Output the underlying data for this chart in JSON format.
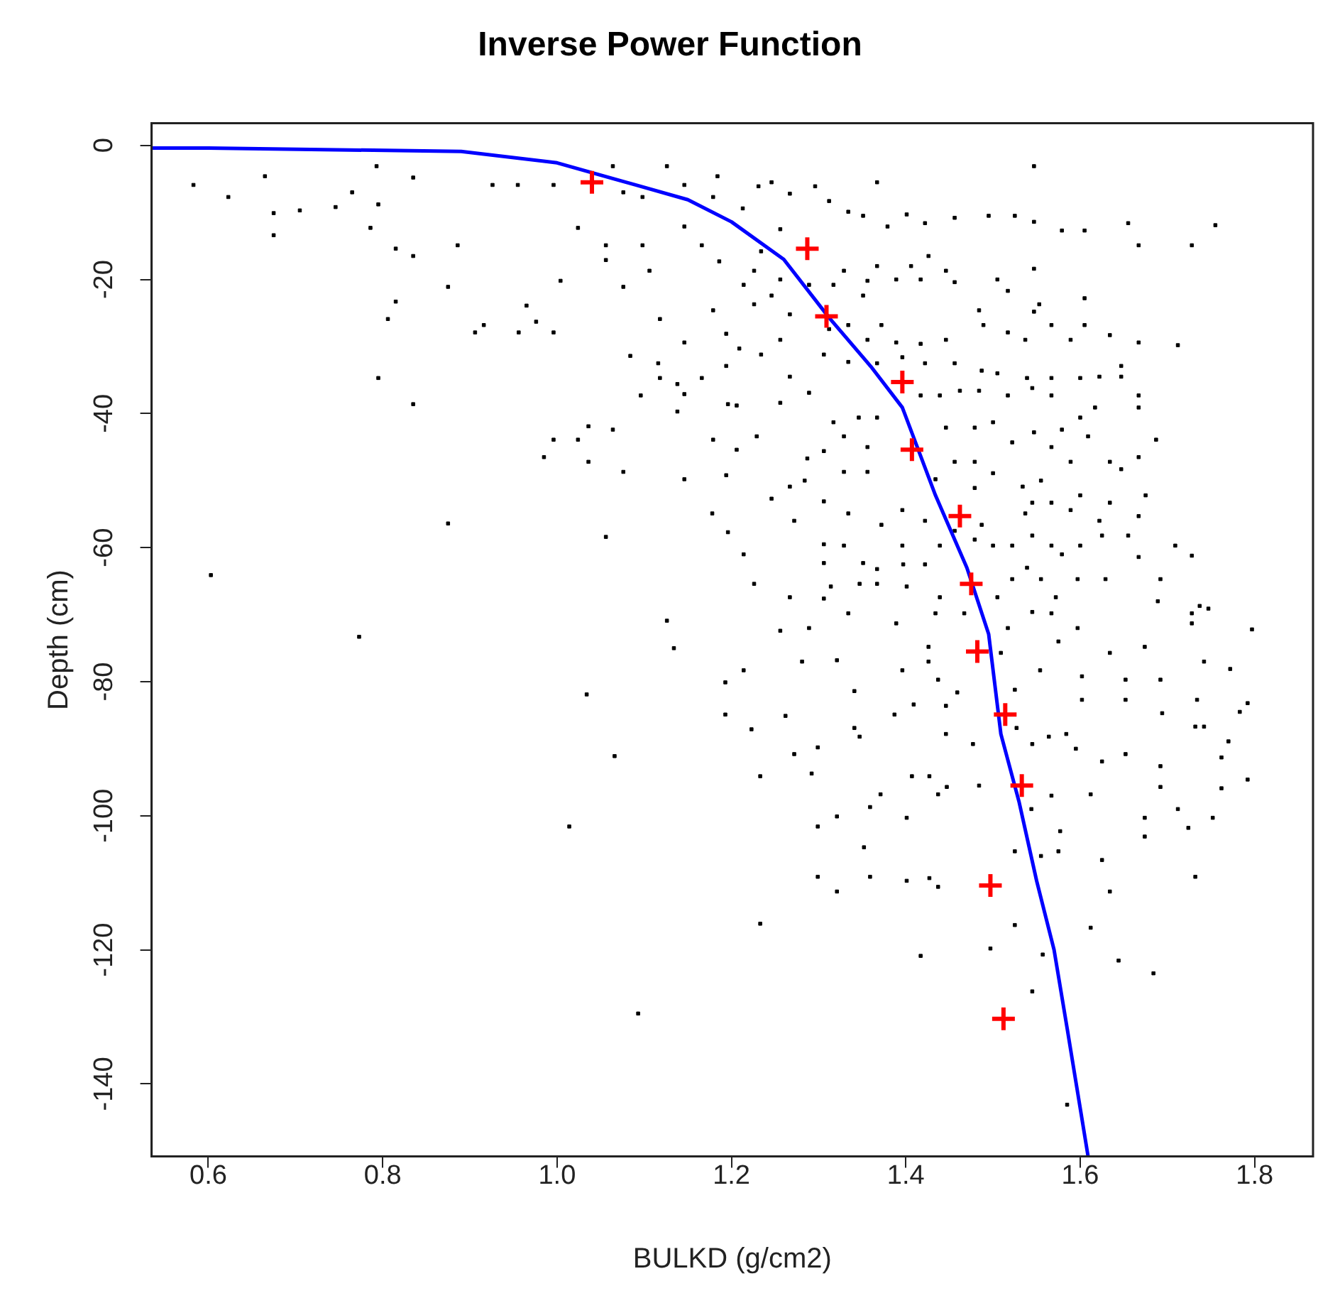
{
  "chart_data": {
    "type": "scatter",
    "title": "Inverse Power Function",
    "xlabel": "BULKD (g/cm2)",
    "ylabel": "Depth (cm)",
    "xlim": [
      0.535,
      1.867
    ],
    "ylim": [
      -150.8,
      3.3
    ],
    "xticks": [
      0.6,
      0.8,
      {
        "value": 1,
        "label": "1.0"
      },
      1.2,
      1.4,
      1.6,
      1.8
    ],
    "yticks": [
      0,
      -20,
      -40,
      -60,
      -80,
      -100,
      -120,
      -140
    ],
    "grid": false,
    "legend": false,
    "series": [
      {
        "color": "#000000",
        "marker": "square",
        "x": [
          0.583,
          0.623,
          0.665,
          0.675,
          0.675,
          0.705,
          0.746,
          0.765,
          0.793,
          0.795,
          0.786,
          0.835,
          0.815,
          0.835,
          0.815,
          0.806,
          0.795,
          0.835,
          0.875,
          0.875,
          0.603,
          0.773,
          0.886,
          0.916,
          0.906,
          0.956,
          0.965,
          0.976,
          0.996,
          1.004,
          0.996,
          0.985,
          1.024,
          1.036,
          1.076,
          1.036,
          1.064,
          1.056,
          1.126,
          0.926,
          0.955,
          0.996,
          1.024,
          1.056,
          1.056,
          1.076,
          1.106,
          1.098,
          1.118,
          1.146,
          1.084,
          1.116,
          1.118,
          1.138,
          1.146,
          1.138,
          1.096,
          1.166,
          1.146,
          1.178,
          1.179,
          1.126,
          1.146,
          1.184,
          1.146,
          1.179,
          1.166,
          1.186,
          1.179,
          1.194,
          1.194,
          1.196,
          1.194,
          1.196,
          1.064,
          1.076,
          1.098,
          1.367,
          1.547,
          1.755,
          1.655,
          1.728,
          1.667,
          1.605,
          1.579,
          1.547,
          1.525,
          1.495,
          1.456,
          1.422,
          1.401,
          1.379,
          1.351,
          1.334,
          1.312,
          1.296,
          1.267,
          1.246,
          1.231,
          1.213,
          1.256,
          1.234,
          1.226,
          1.256,
          1.214,
          1.226,
          1.246,
          1.267,
          1.289,
          1.317,
          1.351,
          1.356,
          1.389,
          1.417,
          1.446,
          1.456,
          1.505,
          1.517,
          1.426,
          1.406,
          1.329,
          1.367,
          1.547,
          1.605,
          1.553,
          1.547,
          1.484,
          1.489,
          1.567,
          1.605,
          1.517,
          1.537,
          1.589,
          1.634,
          1.667,
          1.712,
          1.446,
          1.417,
          1.389,
          1.372,
          1.356,
          1.334,
          1.312,
          1.256,
          1.234,
          1.209,
          1.267,
          1.306,
          1.334,
          1.367,
          1.396,
          1.422,
          1.456,
          1.487,
          1.505,
          1.539,
          1.567,
          1.6,
          1.622,
          1.647,
          1.647,
          1.667,
          1.667,
          1.617,
          1.6,
          1.567,
          1.545,
          1.517,
          1.484,
          1.462,
          1.439,
          1.417,
          1.367,
          1.346,
          1.317,
          1.289,
          1.256,
          1.206,
          1.229,
          1.206,
          1.287,
          1.306,
          1.329,
          1.356,
          1.356,
          1.329,
          1.284,
          1.246,
          1.267,
          1.446,
          1.479,
          1.5,
          1.522,
          1.547,
          1.579,
          1.609,
          1.567,
          1.589,
          1.634,
          1.647,
          1.667,
          1.687,
          1.675,
          1.479,
          1.456,
          1.434,
          1.479,
          1.5,
          1.534,
          1.555,
          1.545,
          1.567,
          1.6,
          1.634,
          1.667,
          1.622,
          1.589,
          1.537,
          1.487,
          1.456,
          1.422,
          1.396,
          1.372,
          1.334,
          1.306,
          1.272,
          1.214,
          1.306,
          1.329,
          1.351,
          1.306,
          1.367,
          1.396,
          1.397,
          1.422,
          1.439,
          1.479,
          1.5,
          1.522,
          1.545,
          1.567,
          1.579,
          1.6,
          1.625,
          1.655,
          1.667,
          1.709,
          1.728,
          1.226,
          1.267,
          1.314,
          1.347,
          1.367,
          1.401,
          1.439,
          1.505,
          1.522,
          1.539,
          1.555,
          1.572,
          1.597,
          1.629,
          1.692,
          1.689,
          1.728,
          1.737,
          1.747,
          1.728,
          1.797,
          1.306,
          1.334,
          1.389,
          1.434,
          1.467,
          1.517,
          1.545,
          1.567,
          1.597,
          1.256,
          1.289,
          1.134,
          1.034,
          1.066,
          1.014,
          1.093,
          1.193,
          1.214,
          1.193,
          1.223,
          1.233,
          1.233,
          1.262,
          1.272,
          1.281,
          1.292,
          1.299,
          1.299,
          1.299,
          1.321,
          1.321,
          1.321,
          1.341,
          1.341,
          1.347,
          1.359,
          1.371,
          1.352,
          1.359,
          1.401,
          1.401,
          1.407,
          1.417,
          1.387,
          1.409,
          1.396,
          1.426,
          1.426,
          1.437,
          1.446,
          1.446,
          1.427,
          1.437,
          1.447,
          1.427,
          1.437,
          1.477,
          1.484,
          1.459,
          1.509,
          1.525,
          1.527,
          1.497,
          1.525,
          1.525,
          1.545,
          1.557,
          1.555,
          1.544,
          1.545,
          1.567,
          1.564,
          1.554,
          1.575,
          1.602,
          1.602,
          1.584,
          1.595,
          1.577,
          1.575,
          1.612,
          1.625,
          1.634,
          1.612,
          1.644,
          1.585,
          1.625,
          1.652,
          1.674,
          1.674,
          1.684,
          1.692,
          1.692,
          1.712,
          1.724,
          1.732,
          1.752,
          1.762,
          1.762,
          1.77,
          1.792,
          1.732,
          1.742,
          1.783,
          1.792,
          1.772,
          1.742,
          1.694,
          1.652,
          1.692,
          1.734,
          1.652,
          1.634,
          1.674
        ],
        "values": [
          -5.9,
          -7.7,
          -4.6,
          -10.1,
          -13.4,
          -9.7,
          -9.2,
          -7,
          -3.1,
          -8.8,
          -12.3,
          -4.8,
          -15.4,
          -16.5,
          -23.3,
          -25.9,
          -34.7,
          -38.6,
          -21.1,
          -56.4,
          -64.1,
          -73.3,
          -14.9,
          -26.8,
          -27.9,
          -27.9,
          -23.9,
          -26.3,
          -27.9,
          -20.2,
          -43.9,
          -46.5,
          -43.9,
          -47.2,
          -48.7,
          -41.9,
          -42.4,
          -58.4,
          -70.9,
          -5.9,
          -5.9,
          -5.9,
          -12.3,
          -14.9,
          -17.1,
          -21.1,
          -18.7,
          -14.9,
          -25.9,
          -29.4,
          -31.4,
          -32.5,
          -34.7,
          -35.6,
          -37.1,
          -39.7,
          -37.3,
          -34.7,
          -49.8,
          -54.9,
          -43.9,
          -3.1,
          -5.9,
          -4.6,
          -12.1,
          -7.7,
          -14.9,
          -17.3,
          -24.6,
          -28.1,
          -32.9,
          -38.6,
          -49.2,
          -57.7,
          -3.1,
          -7,
          -7.7,
          -5.5,
          -3.1,
          -11.9,
          -11.6,
          -14.9,
          -14.9,
          -12.7,
          -12.7,
          -11.4,
          -10.5,
          -10.5,
          -10.8,
          -11.6,
          -10.3,
          -12.1,
          -10.5,
          -9.9,
          -8.3,
          -6.1,
          -7.2,
          -5.5,
          -6.1,
          -9.4,
          -12.5,
          -15.8,
          -18.7,
          -20,
          -20.8,
          -23.7,
          -22.4,
          -25.2,
          -20.8,
          -20.8,
          -22.4,
          -20.2,
          -20,
          -20,
          -18.7,
          -20.4,
          -20,
          -21.7,
          -16.5,
          -18,
          -18.7,
          -18,
          -18.4,
          -22.8,
          -23.7,
          -24.8,
          -24.6,
          -26.8,
          -26.8,
          -26.8,
          -27.9,
          -29,
          -29,
          -28.3,
          -29.4,
          -29.8,
          -29,
          -29.6,
          -29.4,
          -26.8,
          -29,
          -26.8,
          -27.4,
          -29,
          -31.2,
          -30.3,
          -34.5,
          -31.2,
          -32.3,
          -32.5,
          -31.6,
          -32.5,
          -32.5,
          -33.6,
          -34,
          -34.7,
          -34.7,
          -34.7,
          -34.5,
          -32.9,
          -34.5,
          -37.3,
          -39.1,
          -39.1,
          -40.6,
          -37.3,
          -36.2,
          -37.3,
          -36.6,
          -36.6,
          -37.3,
          -37.3,
          -40.6,
          -40.6,
          -41.3,
          -36.9,
          -38.4,
          -38.8,
          -43.4,
          -45.4,
          -46.7,
          -45.6,
          -43.4,
          -45,
          -48.7,
          -48.7,
          -50,
          -52.7,
          -50.9,
          -42.1,
          -42.1,
          -41.3,
          -44.3,
          -42.8,
          -42.4,
          -43.4,
          -45,
          -47.2,
          -47.2,
          -48.3,
          -46.5,
          -43.9,
          -52.2,
          -47.2,
          -47.2,
          -49.8,
          -51.1,
          -48.9,
          -50.9,
          -50,
          -53.3,
          -53.3,
          -52.2,
          -53.3,
          -55.3,
          -56,
          -54.4,
          -54.9,
          -56.6,
          -57.5,
          -56,
          -54.4,
          -56.6,
          -54.9,
          -53.1,
          -56,
          -61,
          -59.5,
          -59.7,
          -62.3,
          -62.3,
          -63.2,
          -59.7,
          -62.5,
          -62.5,
          -59.7,
          -58.8,
          -59.7,
          -59.7,
          -58.2,
          -59.7,
          -61,
          -59.7,
          -58.2,
          -58.2,
          -61.4,
          -59.7,
          -61.2,
          -65.4,
          -67.4,
          -65.8,
          -65.4,
          -65.4,
          -65.8,
          -67.4,
          -67.4,
          -64.7,
          -63,
          -64.7,
          -67.4,
          -64.7,
          -64.7,
          -64.7,
          -68,
          -69.8,
          -68.7,
          -69.1,
          -71.3,
          -72.2,
          -67.6,
          -69.8,
          -71.3,
          -69.8,
          -69.8,
          -72,
          -69.6,
          -69.8,
          -72,
          -72.4,
          -72,
          -75,
          -81.9,
          -91.1,
          -101.6,
          -129.5,
          -80.1,
          -78.3,
          -84.9,
          -87.1,
          -94.1,
          -116.1,
          -85.1,
          -90.8,
          -77,
          -93.7,
          -89.8,
          -101.6,
          -109.1,
          -100.1,
          -111.3,
          -76.8,
          -81.4,
          -86.9,
          -88.2,
          -98.7,
          -96.8,
          -104.7,
          -109.1,
          -109.7,
          -100.3,
          -94.1,
          -120.9,
          -84.9,
          -83.4,
          -78.3,
          -74.8,
          -77,
          -79.7,
          -83.6,
          -87.8,
          -94.1,
          -96.8,
          -95.7,
          -109.3,
          -110.6,
          -89.3,
          -95.5,
          -81.6,
          -75.7,
          -81.2,
          -86.9,
          -119.8,
          -105.3,
          -116.3,
          -126.2,
          -120.7,
          -106,
          -99,
          -89.3,
          -97,
          -88.2,
          -78.3,
          -74,
          -79.2,
          -82.7,
          -87.8,
          -90,
          -102.3,
          -105.3,
          -96.8,
          -106.6,
          -111.3,
          -116.7,
          -121.6,
          -143.1,
          -91.9,
          -90.8,
          -100.3,
          -103.1,
          -123.5,
          -92.6,
          -95.7,
          -99,
          -101.8,
          -109.1,
          -100.3,
          -91.3,
          -95.9,
          -88.9,
          -94.6,
          -86.7,
          -86.7,
          -84.5,
          -83.2,
          -78.1,
          -77,
          -84.7,
          -82.7,
          -79.7,
          -82.7,
          -79.7,
          -75.7,
          -74.8
        ]
      },
      {
        "type": "line",
        "color": "#0000ff",
        "marker": "none",
        "x": [
          0.535,
          0.6,
          0.89,
          1.0,
          1.09,
          1.15,
          1.2,
          1.26,
          1.312,
          1.36,
          1.396,
          1.434,
          1.47,
          1.495,
          1.509,
          1.53,
          1.55,
          1.57,
          1.585,
          1.609
        ],
        "values": [
          -0.4,
          -0.4,
          -0.9,
          -2.6,
          -5.9,
          -8.1,
          -11.4,
          -17,
          -25.7,
          -33,
          -39.1,
          -52.2,
          -63,
          -72.9,
          -87.8,
          -98,
          -109.7,
          -120,
          -131.7,
          -150.8
        ]
      },
      {
        "color": "#ff0000",
        "marker": "cross",
        "x": [
          1.04,
          1.287,
          1.309,
          1.396,
          1.407,
          1.462,
          1.475,
          1.482,
          1.514,
          1.533,
          1.497,
          1.512
        ],
        "values": [
          -5.5,
          -15.4,
          -25.5,
          -35.3,
          -45.4,
          -55.3,
          -65.4,
          -75.5,
          -84.9,
          -95.5,
          -110.4,
          -130.3
        ]
      }
    ]
  }
}
